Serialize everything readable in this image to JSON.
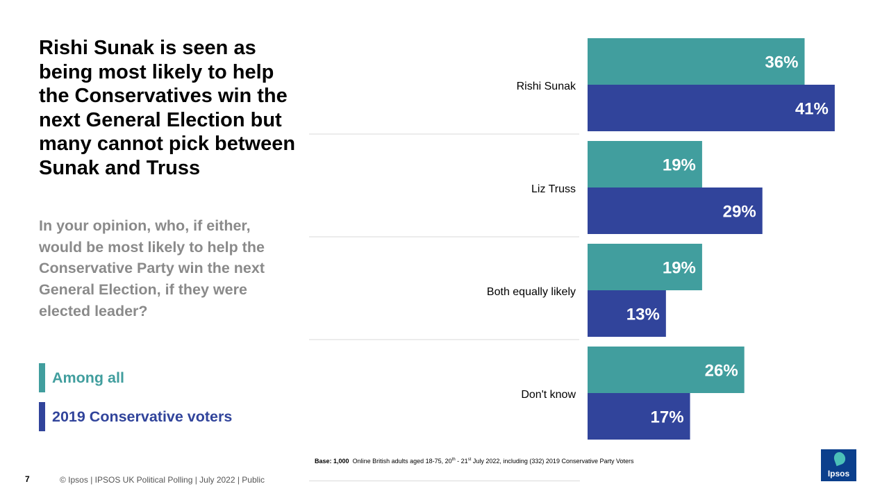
{
  "headline": "Rishi Sunak is seen as being most likely to help the Conservatives win the next General Election but many cannot pick between Sunak and Truss",
  "question": "In your opinion, who, if either, would be most likely to help the Conservative Party win the next General Election, if they were elected leader?",
  "legend": [
    {
      "label": "Among all",
      "color": "#419e9e"
    },
    {
      "label": "2019 Conservative voters",
      "color": "#31449b"
    }
  ],
  "chart_data": {
    "type": "bar",
    "orientation": "horizontal",
    "categories": [
      "Rishi Sunak",
      "Liz Truss",
      "Both equally likely",
      "Don't know"
    ],
    "series": [
      {
        "name": "Among all",
        "values": [
          36,
          19,
          19,
          26
        ],
        "color": "#419e9e"
      },
      {
        "name": "2019 Conservative voters",
        "values": [
          41,
          29,
          13,
          17
        ],
        "color": "#31449b"
      }
    ],
    "value_suffix": "%",
    "xlim": [
      0,
      100
    ],
    "grid": false,
    "legend_position": "left"
  },
  "base_note": {
    "label": "Base: 1,000",
    "text_pre": "Online British adults aged 18-75, 20",
    "sup1": "th",
    "mid": " - 21",
    "sup2": "st",
    "text_post": " July 2022, including (332) 2019 Conservative Party Voters"
  },
  "footer": {
    "page_number": "7",
    "text": "© Ipsos  |  IPSOS UK Political Polling | July 2022 | Public"
  },
  "logo": {
    "text": "Ipsos"
  }
}
